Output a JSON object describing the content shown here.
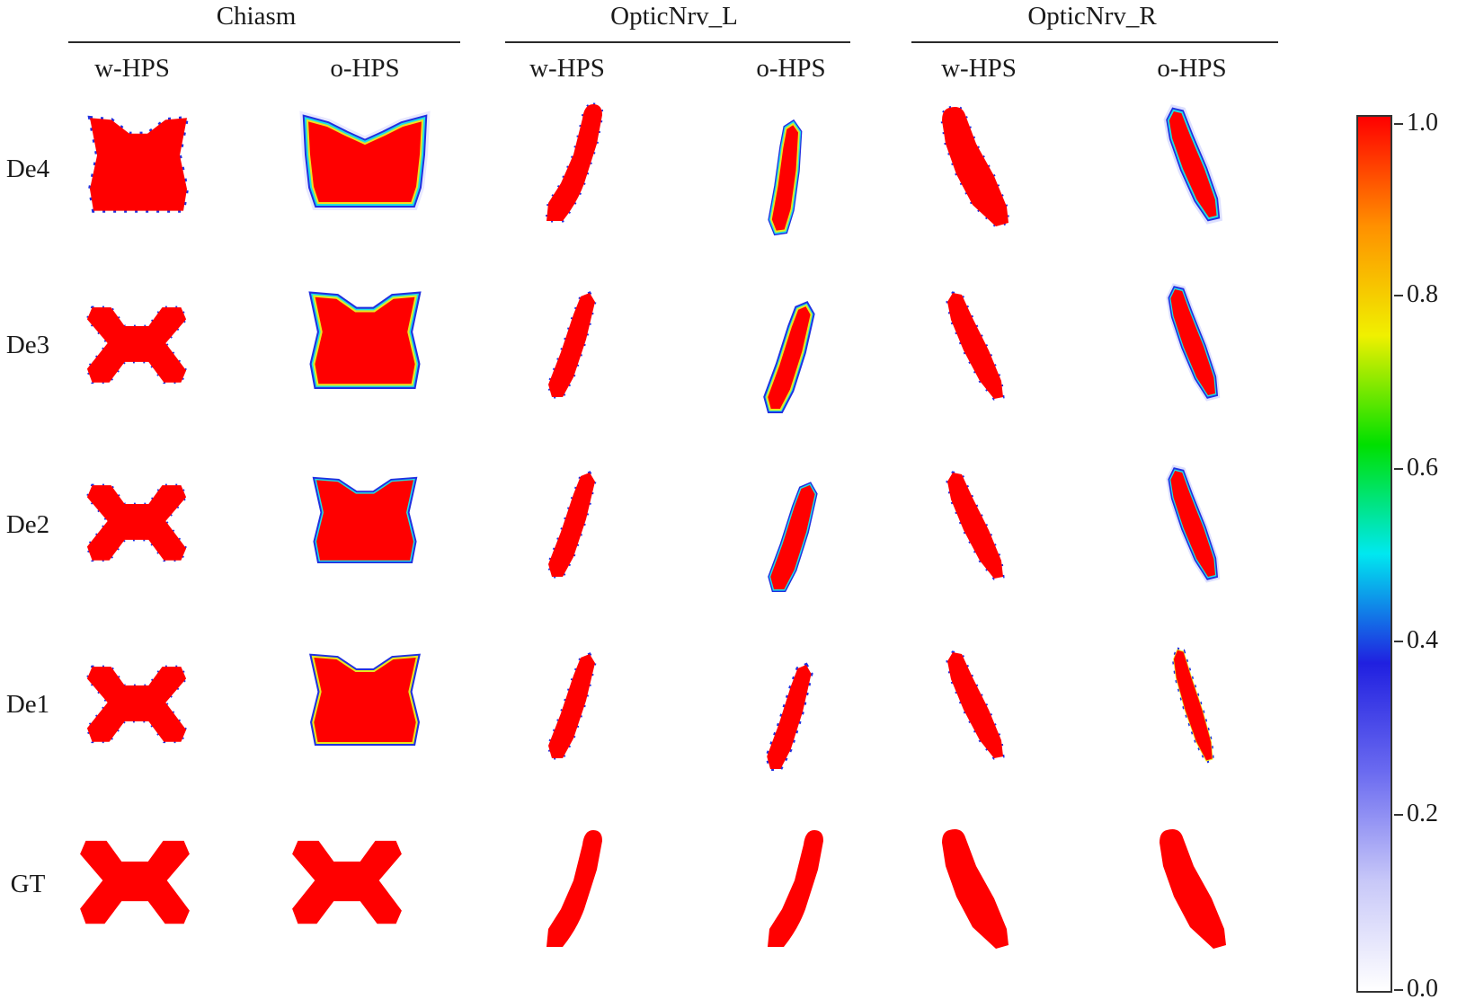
{
  "groups": [
    {
      "title": "Chiasm",
      "cols": [
        "w-HPS",
        "o-HPS"
      ]
    },
    {
      "title": "OpticNrv_L",
      "cols": [
        "w-HPS",
        "o-HPS"
      ]
    },
    {
      "title": "OpticNrv_R",
      "cols": [
        "w-HPS",
        "o-HPS"
      ]
    }
  ],
  "rows": [
    "De4",
    "De3",
    "De2",
    "De1",
    "GT"
  ],
  "colorbar": {
    "ticks": [
      "1.0",
      "0.8",
      "0.6",
      "0.4",
      "0.2",
      "0.0"
    ],
    "range": [
      0.0,
      1.0
    ],
    "colormap": [
      "#ffffff",
      "#c8c8f8",
      "#6b6bf0",
      "#2020e0",
      "#00e8f0",
      "#00e000",
      "#f0f000",
      "#ff9000",
      "#ff0000"
    ]
  },
  "colors": {
    "structure": "#ff0000",
    "edge_blue": "#2030e0",
    "edge_cyan": "#20e0e0",
    "edge_yellow": "#e8e820"
  }
}
